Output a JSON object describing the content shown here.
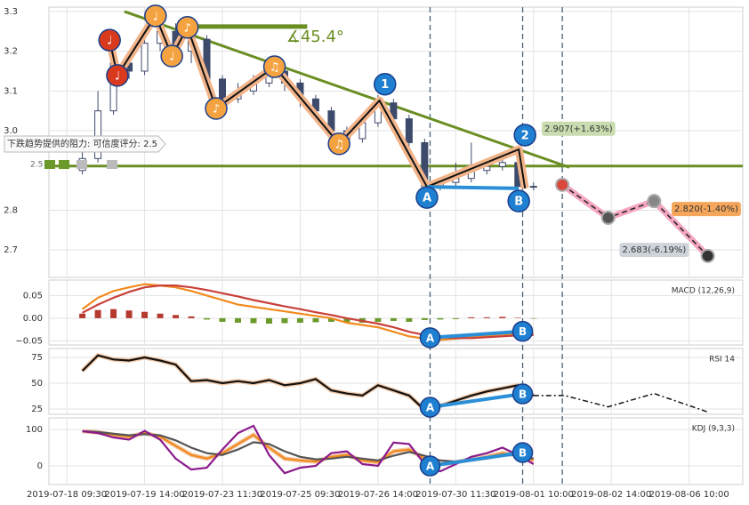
{
  "chart_data": [
    {
      "type": "candlestick",
      "xlim": [
        -2.3,
        86.9
      ],
      "ylim": [
        2.631,
        3.311
      ],
      "yticks": [
        2.7,
        2.8,
        {
          "value": 3,
          "label": "3.0"
        },
        3.1,
        3.2,
        3.3
      ],
      "x": [
        2,
        4,
        6,
        8,
        10,
        12,
        14,
        16,
        18,
        20,
        22,
        24,
        26,
        28,
        30,
        32,
        34,
        36,
        38,
        40,
        42,
        44,
        46,
        48,
        50,
        52,
        54,
        56,
        58,
        60
      ],
      "open": [
        2.9,
        2.93,
        3.05,
        3.17,
        3.15,
        3.22,
        3.25,
        3.2,
        3.23,
        3.13,
        3.08,
        3.1,
        3.12,
        3.15,
        3.12,
        3.08,
        3.05,
        3.0,
        2.98,
        3.02,
        3.07,
        3.03,
        2.97,
        2.86,
        2.87,
        2.88,
        2.9,
        2.91,
        2.92,
        2.86
      ],
      "high": [
        2.95,
        3.1,
        3.22,
        3.19,
        3.25,
        3.29,
        3.27,
        3.26,
        3.24,
        3.14,
        3.12,
        3.14,
        3.17,
        3.16,
        3.13,
        3.09,
        3.06,
        3.01,
        3.04,
        3.09,
        3.08,
        3.04,
        2.98,
        2.88,
        2.92,
        2.97,
        2.93,
        2.94,
        2.93,
        2.87
      ],
      "low": [
        2.89,
        2.92,
        3.04,
        3.13,
        3.14,
        3.2,
        3.18,
        3.17,
        3.11,
        3.06,
        3.07,
        3.09,
        3.11,
        3.1,
        3.06,
        3.03,
        2.98,
        2.96,
        2.97,
        3.01,
        3.01,
        2.95,
        2.84,
        2.85,
        2.86,
        2.87,
        2.89,
        2.9,
        2.84,
        2.85
      ],
      "close": [
        2.93,
        3.05,
        3.17,
        3.15,
        3.22,
        3.25,
        3.2,
        3.23,
        3.13,
        3.08,
        3.1,
        3.12,
        3.15,
        3.12,
        3.08,
        3.05,
        3.0,
        2.98,
        3.02,
        3.07,
        3.03,
        2.97,
        2.86,
        2.87,
        2.88,
        2.9,
        2.91,
        2.92,
        2.86,
        2.86
      ],
      "up_color": "#ffffff",
      "down_color": "#3d4a6b",
      "trend_lines": [
        {
          "x": [
            7.4,
            64.6
          ],
          "y": [
            3.3,
            2.908
          ],
          "color": "#6b8e23"
        },
        {
          "x": [
            -2.3,
            86.9
          ],
          "y": [
            2.911,
            2.911
          ],
          "color": "#6b8e23"
        },
        {
          "x": [
            16,
            30.9
          ],
          "y": [
            3.262,
            3.262
          ],
          "color": "#6b8e23"
        }
      ],
      "pattern": {
        "x": [
          5.5,
          6.5,
          11.4,
          13.5,
          15.5,
          19.2,
          26.7,
          35.0,
          40.2,
          46.3,
          58.1,
          58.9
        ],
        "y": [
          3.228,
          3.139,
          3.289,
          3.188,
          3.26,
          3.056,
          3.161,
          2.967,
          3.076,
          2.859,
          2.953,
          2.855
        ]
      },
      "ab_line": {
        "x": [
          46.3,
          58.1
        ],
        "y": [
          2.859,
          2.855
        ],
        "color": "#2a8fd6"
      },
      "markers": [
        {
          "label": "♩",
          "x": 5.5,
          "y": 3.228,
          "color": "#d93a1e"
        },
        {
          "label": "♩",
          "x": 6.5,
          "y": 3.139,
          "color": "#d93a1e"
        },
        {
          "label": "♩",
          "x": 11.4,
          "y": 3.289,
          "color": "#f5a340"
        },
        {
          "label": "♩",
          "x": 13.5,
          "y": 3.188,
          "color": "#f5a340"
        },
        {
          "label": "♪",
          "x": 15.5,
          "y": 3.26,
          "color": "#f5a340"
        },
        {
          "label": "♪",
          "x": 19.2,
          "y": 3.056,
          "color": "#f5a340"
        },
        {
          "label": "♫",
          "x": 26.7,
          "y": 3.161,
          "color": "#f5a340"
        },
        {
          "label": "♫",
          "x": 35.0,
          "y": 2.967,
          "color": "#f5a340"
        },
        {
          "label": "1",
          "x": 40.9,
          "y": 3.117,
          "color": "#1f7fd0"
        },
        {
          "label": "2",
          "x": 58.9,
          "y": 2.989,
          "color": "#1f7fd0"
        },
        {
          "label": "A",
          "x": 46.3,
          "y": 2.832,
          "color": "#1f7fd0"
        },
        {
          "label": "B",
          "x": 58.1,
          "y": 2.823,
          "color": "#1f7fd0"
        }
      ],
      "forecast": {
        "x": [
          63.7,
          69.6,
          75.5,
          82.4
        ],
        "y": [
          2.864,
          2.781,
          2.823,
          2.685
        ],
        "color": "#f4a6c0",
        "point_colors": [
          "#d9483b",
          "#555555",
          "#888888",
          "#333333"
        ]
      },
      "annotations": [
        {
          "text": "∡45.4°",
          "x": 28.2,
          "y": 3.235,
          "color": "#6b8e23"
        },
        {
          "text": "2.907(+1.63%)",
          "x": 61.4,
          "y": 3.005,
          "color": "#333333",
          "bg": "#c9dcb0"
        },
        {
          "text": "2.820(-1.40%)",
          "x": 78.1,
          "y": 2.803,
          "color": "#333333",
          "bg": "#f5a65b"
        },
        {
          "text": "2.683(-6.19%)",
          "x": 71.4,
          "y": 2.7,
          "color": "#333333",
          "bg": "#cfd4da"
        }
      ],
      "vlines": [
        46.7,
        58.6,
        63.7
      ],
      "resistance_label": "下跌趋势提供的阻力: 可信度评分: 2.5",
      "score": 2.5
    },
    {
      "type": "macd",
      "label": "MACD (12,26,9)",
      "xlim": [
        -2.3,
        86.9
      ],
      "ylim": [
        -0.059,
        0.084
      ],
      "yticks": [
        {
          "value": -0.05,
          "label": "−0.05"
        },
        {
          "value": 0,
          "label": "0.00"
        },
        0.05
      ],
      "x": [
        2,
        4,
        6,
        8,
        10,
        12,
        14,
        16,
        18,
        20,
        22,
        24,
        26,
        28,
        30,
        32,
        34,
        36,
        38,
        40,
        42,
        44,
        46,
        48,
        50,
        52,
        54,
        56,
        58,
        60
      ],
      "bars": {
        "values": [
          0.01,
          0.018,
          0.02,
          0.017,
          0.014,
          0.01,
          0.007,
          0.004,
          -0.003,
          -0.008,
          -0.01,
          -0.011,
          -0.012,
          -0.011,
          -0.01,
          -0.009,
          -0.008,
          -0.009,
          -0.01,
          -0.008,
          -0.006,
          -0.008,
          -0.004,
          -0.003,
          -0.002,
          0.002,
          0.002,
          0.003,
          0.001,
          -0.001
        ],
        "pos_color": "#b5392f",
        "neg_color": "#6b9a2a"
      },
      "series": [
        {
          "color": "#f28a1e",
          "values": [
            0.02,
            0.045,
            0.06,
            0.068,
            0.075,
            0.072,
            0.068,
            0.06,
            0.05,
            0.04,
            0.03,
            0.025,
            0.02,
            0.015,
            0.01,
            0.005,
            0,
            -0.01,
            -0.015,
            -0.02,
            -0.03,
            -0.04,
            -0.045,
            -0.048,
            -0.045,
            -0.042,
            -0.04,
            -0.038,
            -0.035,
            -0.035
          ]
        },
        {
          "color": "#c9403a",
          "values": [
            0.012,
            0.03,
            0.045,
            0.058,
            0.068,
            0.072,
            0.072,
            0.068,
            0.062,
            0.055,
            0.048,
            0.04,
            0.033,
            0.026,
            0.02,
            0.013,
            0.007,
            0,
            -0.006,
            -0.012,
            -0.02,
            -0.03,
            -0.037,
            -0.042,
            -0.044,
            -0.044,
            -0.042,
            -0.04,
            -0.038,
            -0.037
          ]
        }
      ],
      "ab_line": {
        "x": [
          46.7,
          58.6
        ],
        "y": [
          -0.043,
          -0.029
        ],
        "color": "#2a8fd6"
      },
      "markers": [
        {
          "label": "A",
          "x": 46.7,
          "y": -0.043,
          "color": "#1f7fd0"
        },
        {
          "label": "B",
          "x": 58.6,
          "y": -0.029,
          "color": "#1f7fd0"
        }
      ]
    },
    {
      "type": "line",
      "label": "RSI 14",
      "xlim": [
        -2.3,
        86.9
      ],
      "ylim": [
        19.8,
        83.6
      ],
      "yticks": [
        25,
        50,
        75
      ],
      "x": [
        2,
        4,
        6,
        8,
        10,
        12,
        14,
        16,
        18,
        20,
        22,
        24,
        26,
        28,
        30,
        32,
        34,
        36,
        38,
        40,
        42,
        44,
        46,
        48,
        50,
        52,
        54,
        56,
        58,
        60
      ],
      "series": [
        {
          "color": "#111111",
          "values": [
            62,
            77,
            73,
            72,
            75,
            72,
            68,
            52,
            53,
            50,
            52,
            50,
            53,
            48,
            50,
            54,
            43,
            40,
            38,
            48,
            43,
            38,
            24,
            28,
            33,
            38,
            42,
            45,
            48,
            38
          ]
        },
        {
          "color": "#111111",
          "dash": true,
          "x": [
            60,
            64,
            69.6,
            75.5,
            82.4
          ],
          "values": [
            38,
            38,
            27,
            40,
            22
          ]
        }
      ],
      "ab_line": {
        "x": [
          46.7,
          58.6
        ],
        "y": [
          26.7,
          39.6
        ],
        "color": "#2a8fd6"
      },
      "markers": [
        {
          "label": "A",
          "x": 46.7,
          "y": 26.7,
          "color": "#1f7fd0"
        },
        {
          "label": "B",
          "x": 58.6,
          "y": 39.6,
          "color": "#1f7fd0"
        }
      ]
    },
    {
      "type": "line",
      "label": "KDJ (9,3,3)",
      "xlim": [
        -2.3,
        86.9
      ],
      "ylim": [
        -51.2,
        131.7
      ],
      "yticks": [
        0,
        100
      ],
      "xticks": [
        {
          "value": 0,
          "label": "2019-07-18 09:30"
        },
        {
          "value": 10,
          "label": "2019-07-19 14:00"
        },
        {
          "value": 20,
          "label": "2019-07-23 11:30"
        },
        {
          "value": 30,
          "label": "2019-07-25 09:30"
        },
        {
          "value": 40,
          "label": "2019-07-26 14:00"
        },
        {
          "value": 50,
          "label": "2019-07-30 11:30"
        },
        {
          "value": 60,
          "label": "2019-08-01 10:00"
        },
        {
          "value": 70,
          "label": "2019-08-02 14:00"
        },
        {
          "value": 80,
          "label": "2019-08-06 10:00"
        }
      ],
      "x": [
        2,
        4,
        6,
        8,
        10,
        12,
        14,
        16,
        18,
        20,
        22,
        24,
        26,
        28,
        30,
        32,
        34,
        36,
        38,
        40,
        42,
        44,
        46,
        48,
        50,
        52,
        54,
        56,
        58,
        60
      ],
      "series": [
        {
          "color": "#f28a1e",
          "values": [
            95,
            92,
            85,
            80,
            90,
            80,
            55,
            30,
            20,
            35,
            60,
            85,
            50,
            20,
            15,
            12,
            25,
            30,
            15,
            10,
            40,
            45,
            20,
            5,
            10,
            18,
            25,
            35,
            30,
            15
          ]
        },
        {
          "color": "#555555",
          "values": [
            95,
            93,
            88,
            84,
            87,
            84,
            70,
            50,
            35,
            30,
            45,
            65,
            60,
            40,
            25,
            18,
            20,
            25,
            20,
            15,
            28,
            38,
            28,
            15,
            12,
            15,
            20,
            28,
            30,
            20
          ]
        },
        {
          "color": "#8b1a8b",
          "values": [
            95,
            90,
            78,
            72,
            96,
            72,
            20,
            -10,
            -5,
            45,
            90,
            110,
            30,
            -20,
            -5,
            0,
            35,
            40,
            5,
            0,
            64,
            60,
            5,
            -15,
            5,
            25,
            35,
            50,
            30,
            5
          ]
        }
      ],
      "ab_line": {
        "x": [
          46.7,
          58.6
        ],
        "y": [
          0,
          36.6
        ],
        "color": "#2a8fd6"
      },
      "markers": [
        {
          "label": "A",
          "x": 46.7,
          "y": 0,
          "color": "#1f7fd0"
        },
        {
          "label": "B",
          "x": 58.6,
          "y": 36.6,
          "color": "#1f7fd0"
        }
      ]
    }
  ]
}
